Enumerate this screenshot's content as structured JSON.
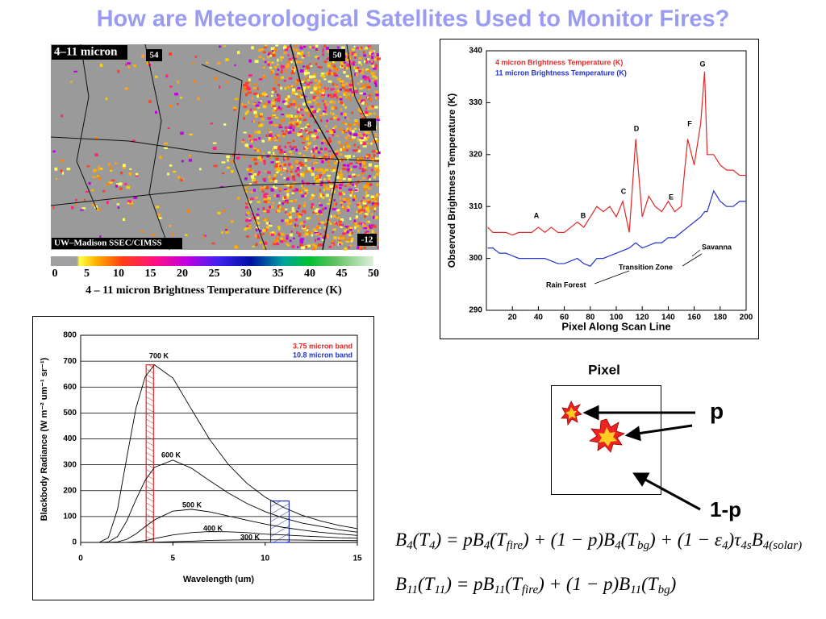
{
  "title": "How are Meteorological Satellites Used to Monitor Fires?",
  "image": {
    "label": "4–11 micron",
    "corner_labels": [
      "54",
      "50",
      "-8",
      "-12"
    ],
    "credit": "UW–Madison SSEC/CIMSS"
  },
  "colorbar": {
    "ticks": [
      0,
      5,
      10,
      15,
      20,
      25,
      30,
      35,
      40,
      45,
      50
    ],
    "caption": "4 – 11 micron Brightness Temperature Difference (K)"
  },
  "chart_data": [
    {
      "type": "line",
      "x_label": "Pixel Along Scan Line",
      "y_label": "Observed Brightness Temperature (K)",
      "x": [
        1,
        5,
        10,
        15,
        20,
        25,
        30,
        35,
        40,
        45,
        50,
        55,
        60,
        65,
        70,
        75,
        80,
        85,
        90,
        95,
        100,
        105,
        110,
        115,
        120,
        125,
        130,
        135,
        140,
        145,
        150,
        155,
        160,
        165,
        168,
        170,
        175,
        180,
        185,
        190,
        195,
        200
      ],
      "series": [
        {
          "name": "4 micron Brightness Temperature (K)",
          "color": "#e02828",
          "values": [
            306,
            305,
            305,
            305,
            304.5,
            305,
            305,
            305,
            306,
            305,
            306,
            305,
            305,
            306,
            307,
            306,
            308,
            310,
            309,
            310,
            308,
            311,
            305,
            323,
            308,
            312,
            310,
            309,
            311,
            309,
            310,
            323,
            318,
            326,
            336,
            320,
            320,
            318,
            317,
            317,
            316,
            316
          ]
        },
        {
          "name": "11 micron Brightness Temperature (K)",
          "color": "#2233cc",
          "values": [
            302,
            302,
            301,
            301,
            300.5,
            300,
            300,
            300,
            300,
            300,
            299.5,
            299,
            299,
            299.5,
            300,
            299,
            298.5,
            300,
            300,
            300.5,
            301,
            301.5,
            302,
            303,
            302,
            302.5,
            303,
            303,
            304,
            304,
            305,
            306,
            307,
            308,
            309,
            309,
            313,
            311,
            310,
            310,
            311,
            311
          ]
        }
      ],
      "xlim": [
        0,
        200
      ],
      "xticks": [
        20,
        40,
        60,
        80,
        100,
        120,
        140,
        160,
        180,
        200
      ],
      "ylim": [
        290,
        340
      ],
      "yticks": [
        290,
        300,
        310,
        320,
        330,
        340
      ],
      "grid": false,
      "annotations": [
        "A",
        "B",
        "C",
        "D",
        "E",
        "F",
        "G",
        "Rain Forest",
        "Transition Zone",
        "Savanna"
      ]
    },
    {
      "type": "line",
      "x_label": "Wavelength (um)",
      "y_label": "Blackbody Radiance (W m⁻² um⁻¹ sr⁻¹)",
      "x": [
        0,
        1,
        1.5,
        2,
        2.5,
        3,
        3.5,
        4,
        5,
        6,
        7,
        8,
        9,
        10,
        11,
        12,
        13,
        14,
        15
      ],
      "series": [
        {
          "name": "700 K",
          "color": "#000000",
          "values": [
            0,
            0,
            18,
            128,
            328,
            519,
            640,
            686,
            635,
            515,
            397,
            302,
            229,
            175,
            135,
            105,
            83,
            66,
            53
          ]
        },
        {
          "name": "600 K",
          "color": "#000000",
          "values": [
            0,
            0,
            2,
            23,
            83,
            166,
            240,
            290,
            318,
            287,
            238,
            191,
            151,
            119,
            94,
            75,
            62,
            49,
            40
          ]
        },
        {
          "name": "500 K",
          "color": "#000000",
          "values": [
            0,
            0,
            0,
            2,
            12,
            33,
            61,
            87,
            121,
            128,
            118,
            102,
            86,
            71,
            58,
            48,
            39,
            33,
            27
          ]
        },
        {
          "name": "400 K",
          "color": "#000000",
          "values": [
            0,
            0,
            0,
            0,
            0,
            3,
            7,
            15,
            29,
            38,
            42,
            41,
            38,
            32,
            29,
            25,
            22,
            18,
            16
          ]
        },
        {
          "name": "300 K",
          "color": "#000000",
          "values": [
            0,
            0,
            0,
            0,
            0,
            0,
            0,
            1,
            3,
            5,
            8,
            9,
            10,
            10,
            10,
            9,
            8,
            8,
            7
          ]
        }
      ],
      "bands": [
        {
          "name": "3.75 micron band",
          "color": "#e02828",
          "range": [
            3.55,
            3.95
          ]
        },
        {
          "name": "10.8 micron band",
          "color": "#2233cc",
          "range": [
            10.3,
            11.3
          ]
        }
      ],
      "xlim": [
        0,
        15
      ],
      "xticks": [
        0,
        5,
        10,
        15
      ],
      "ylim": [
        0,
        800
      ],
      "yticks": [
        0,
        100,
        200,
        300,
        400,
        500,
        600,
        700,
        800
      ],
      "grid": true
    }
  ],
  "pixel_diagram": {
    "title": "Pixel",
    "labels": [
      "p",
      "1-p"
    ]
  },
  "equations": [
    [
      "B",
      "4",
      "(T",
      "4",
      ") = pB",
      "4",
      "(T",
      "fire",
      ") + (1 − p)B",
      "4",
      "(T",
      "bg",
      ") + (1 − ε",
      "4",
      ")τ",
      "4s",
      "B",
      "4(solar)"
    ],
    [
      "B",
      "11",
      "(T",
      "11",
      ") = pB",
      "11",
      "(T",
      "fire",
      ") + (1 − p)B",
      "11",
      "(T",
      "bg",
      ")"
    ]
  ]
}
